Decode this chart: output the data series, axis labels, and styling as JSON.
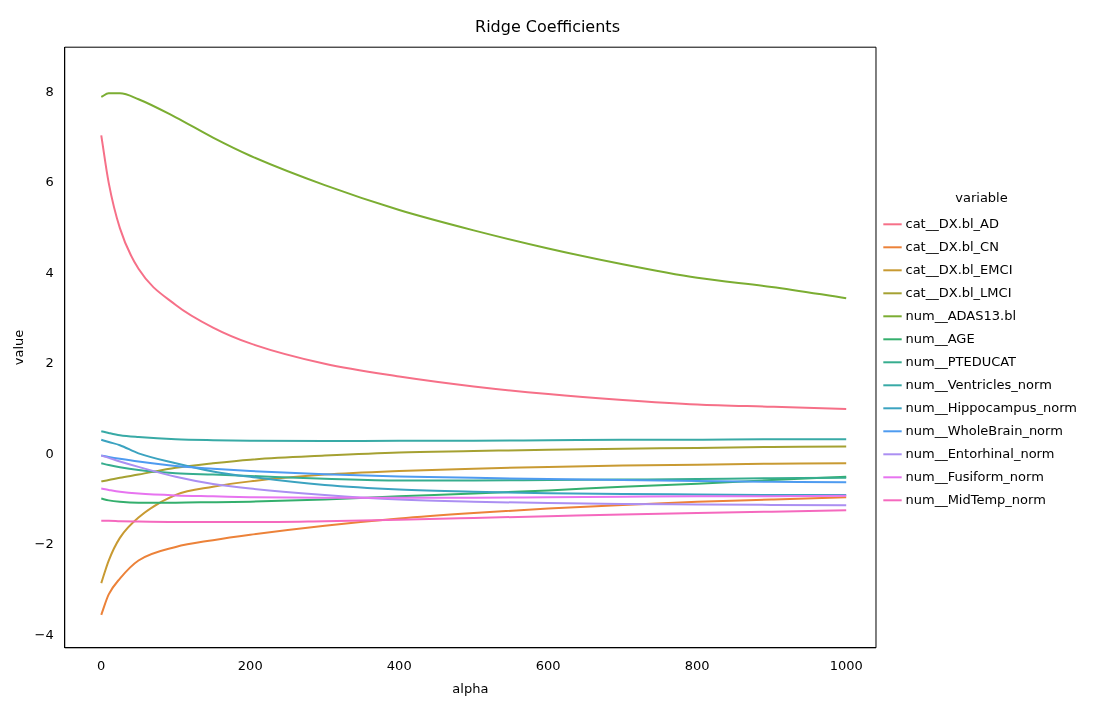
{
  "chart_data": {
    "type": "line",
    "title": "Ridge Coefficients",
    "xlabel": "alpha",
    "ylabel": "value",
    "legend_title": "variable",
    "x": [
      0,
      10,
      25,
      50,
      100,
      150,
      200,
      300,
      400,
      500,
      600,
      700,
      800,
      900,
      1000
    ],
    "xlim": [
      -49,
      1040
    ],
    "ylim": [
      -4.28,
      9.0
    ],
    "xticks": [
      0,
      200,
      400,
      600,
      800,
      1000
    ],
    "yticks": [
      -4,
      -2,
      0,
      2,
      4,
      6,
      8
    ],
    "grid": false,
    "legend": "right",
    "marker": "none",
    "line_style": "solid",
    "series": [
      {
        "name": "cat__DX.bl_AD",
        "color": "#f67088",
        "values": [
          7.05,
          6.0,
          5.0,
          4.1,
          3.3,
          2.8,
          2.45,
          2.0,
          1.72,
          1.5,
          1.33,
          1.2,
          1.1,
          1.05,
          1.0
        ]
      },
      {
        "name": "cat__DX.bl_CN",
        "color": "#ec8239",
        "values": [
          -3.55,
          -3.1,
          -2.75,
          -2.35,
          -2.05,
          -1.9,
          -1.78,
          -1.58,
          -1.42,
          -1.3,
          -1.2,
          -1.12,
          -1.05,
          -1.0,
          -0.95
        ]
      },
      {
        "name": "cat__DX.bl_EMCI",
        "color": "#c89a32",
        "values": [
          -2.85,
          -2.35,
          -1.85,
          -1.4,
          -0.9,
          -0.72,
          -0.6,
          -0.45,
          -0.37,
          -0.32,
          -0.28,
          -0.25,
          -0.23,
          -0.21,
          -0.2
        ]
      },
      {
        "name": "cat__DX.bl_LMCI",
        "color": "#a5a132",
        "values": [
          -0.6,
          -0.57,
          -0.52,
          -0.45,
          -0.3,
          -0.2,
          -0.12,
          -0.03,
          0.04,
          0.07,
          0.1,
          0.12,
          0.14,
          0.16,
          0.17
        ]
      },
      {
        "name": "num__ADAS13.bl",
        "color": "#7bad32",
        "values": [
          7.9,
          7.98,
          7.98,
          7.85,
          7.45,
          7.0,
          6.6,
          5.95,
          5.4,
          4.95,
          4.55,
          4.2,
          3.9,
          3.7,
          3.45
        ]
      },
      {
        "name": "num__AGE",
        "color": "#34af6d",
        "values": [
          -0.98,
          -1.02,
          -1.05,
          -1.07,
          -1.07,
          -1.06,
          -1.05,
          -1.0,
          -0.93,
          -0.87,
          -0.8,
          -0.72,
          -0.65,
          -0.57,
          -0.5
        ]
      },
      {
        "name": "num__PTEDUCAT",
        "color": "#36ad8e",
        "values": [
          -0.2,
          -0.24,
          -0.29,
          -0.35,
          -0.42,
          -0.45,
          -0.48,
          -0.54,
          -0.58,
          -0.58,
          -0.57,
          -0.56,
          -0.55,
          -0.53,
          -0.52
        ]
      },
      {
        "name": "num__Ventricles_norm",
        "color": "#38aaa6",
        "values": [
          0.51,
          0.47,
          0.42,
          0.38,
          0.33,
          0.31,
          0.3,
          0.29,
          0.3,
          0.3,
          0.31,
          0.32,
          0.32,
          0.33,
          0.33
        ]
      },
      {
        "name": "num__Hippocampus_norm",
        "color": "#3ba3c0",
        "values": [
          0.32,
          0.27,
          0.2,
          0.02,
          -0.2,
          -0.38,
          -0.5,
          -0.68,
          -0.78,
          -0.83,
          -0.86,
          -0.88,
          -0.89,
          -0.9,
          -0.9
        ]
      },
      {
        "name": "num__WholeBrain_norm",
        "color": "#4e9bf0",
        "values": [
          -0.03,
          -0.06,
          -0.1,
          -0.16,
          -0.26,
          -0.32,
          -0.37,
          -0.44,
          -0.49,
          -0.52,
          -0.55,
          -0.57,
          -0.59,
          -0.61,
          -0.62
        ]
      },
      {
        "name": "num__Entorhinal_norm",
        "color": "#ab8ff2",
        "values": [
          -0.03,
          -0.08,
          -0.16,
          -0.28,
          -0.5,
          -0.66,
          -0.76,
          -0.9,
          -1.0,
          -1.05,
          -1.08,
          -1.1,
          -1.11,
          -1.12,
          -1.13
        ]
      },
      {
        "name": "num__Fusiform_norm",
        "color": "#e774f0",
        "values": [
          -0.76,
          -0.79,
          -0.83,
          -0.87,
          -0.91,
          -0.93,
          -0.95,
          -0.96,
          -0.96,
          -0.96,
          -0.95,
          -0.94,
          -0.93,
          -0.93,
          -0.92
        ]
      },
      {
        "name": "num__MidTemp_norm",
        "color": "#f569be",
        "values": [
          -1.47,
          -1.47,
          -1.48,
          -1.49,
          -1.5,
          -1.5,
          -1.5,
          -1.48,
          -1.45,
          -1.41,
          -1.37,
          -1.33,
          -1.3,
          -1.27,
          -1.24
        ]
      }
    ]
  }
}
